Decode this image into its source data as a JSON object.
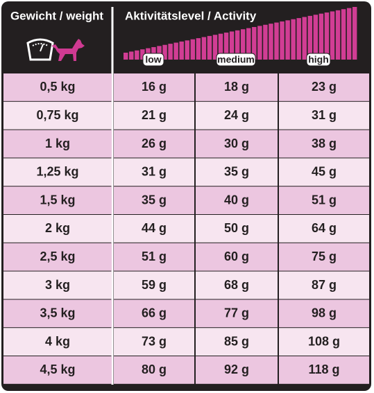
{
  "header": {
    "weight_label": "Gewicht / weight",
    "activity_label": "Aktivitätslevel / Activity",
    "levels": [
      "low",
      "medium",
      "high"
    ]
  },
  "table": {
    "rows": [
      [
        "0,5 kg",
        "16 g",
        "18 g",
        "23 g"
      ],
      [
        "0,75 kg",
        "21 g",
        "24 g",
        "31 g"
      ],
      [
        "1 kg",
        "26 g",
        "30 g",
        "38 g"
      ],
      [
        "1,25 kg",
        "31 g",
        "35 g",
        "45 g"
      ],
      [
        "1,5 kg",
        "35 g",
        "40 g",
        "51 g"
      ],
      [
        "2 kg",
        "44 g",
        "50 g",
        "64 g"
      ],
      [
        "2,5 kg",
        "51 g",
        "60 g",
        "75 g"
      ],
      [
        "3 kg",
        "59 g",
        "68 g",
        "87 g"
      ],
      [
        "3,5 kg",
        "66 g",
        "77 g",
        "98 g"
      ],
      [
        "4 kg",
        "73 g",
        "85 g",
        "108 g"
      ],
      [
        "4,5 kg",
        "80 g",
        "92 g",
        "118 g"
      ]
    ]
  }
}
